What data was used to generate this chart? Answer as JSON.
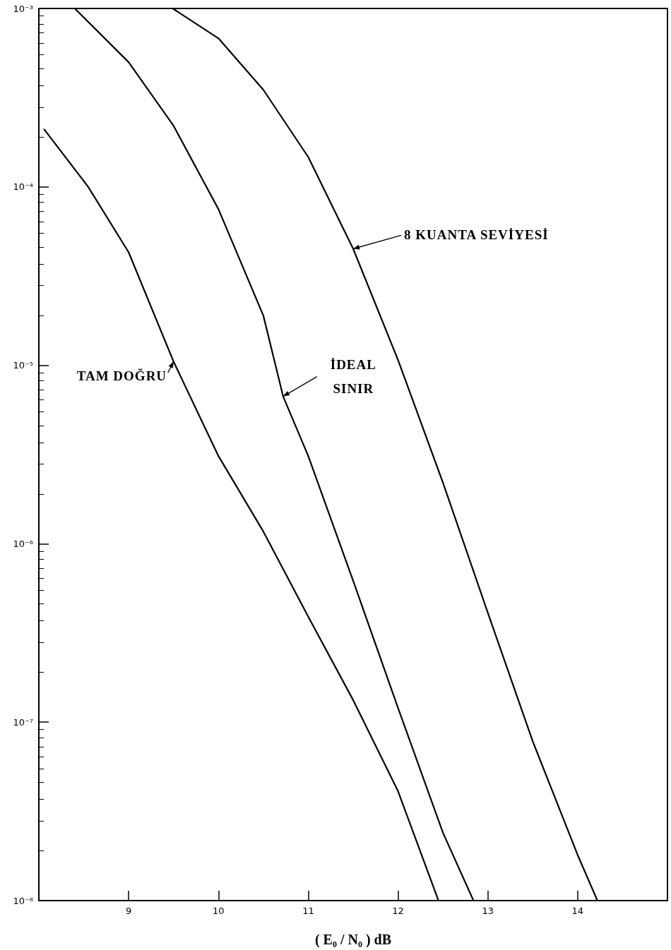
{
  "chart_data": {
    "type": "line",
    "xlabel": "( E₀ / N₀ ) dB",
    "log": "y",
    "grid": false,
    "marker": "none",
    "line_style": "solid",
    "xlim": [
      8,
      15
    ],
    "xticks": [
      9,
      10,
      11,
      12,
      13,
      14
    ],
    "ylim": [
      1e-08,
      0.001
    ],
    "yticks": [
      {
        "value": 1e-08,
        "label": "10⁻⁸"
      },
      {
        "value": 1e-07,
        "label": "10⁻⁷"
      },
      {
        "value": 1e-06,
        "label": "10⁻⁶"
      },
      {
        "value": 1e-05,
        "label": "10⁻⁵"
      },
      {
        "value": 0.0001,
        "label": "10⁻⁴"
      },
      {
        "value": 0.001,
        "label": "10⁻³"
      }
    ],
    "series": [
      {
        "color": "#000000",
        "x": [
          8.06,
          8.55,
          9.0,
          9.5,
          10.0,
          10.5,
          11.0,
          11.5,
          12.0,
          12.45
        ],
        "values": [
          0.00021,
          0.0001,
          4.3e-05,
          1.05e-05,
          3.1e-06,
          1.17e-06,
          3.9e-07,
          1.33e-07,
          4.1e-08,
          1e-08
        ]
      },
      {
        "color": "#000000",
        "x": [
          8.4,
          9.0,
          9.5,
          10.0,
          10.5,
          10.72,
          11.0,
          11.5,
          12.0,
          12.5,
          12.84
        ],
        "values": [
          0.001,
          0.0005,
          0.00022,
          7.5e-05,
          1.9e-05,
          6.7e-06,
          3.1e-06,
          6.2e-07,
          1.2e-07,
          2.4e-08,
          1e-08
        ]
      },
      {
        "color": "#000000",
        "x": [
          9.49,
          10.0,
          10.5,
          11.0,
          11.5,
          12.0,
          12.5,
          13.0,
          13.5,
          14.0,
          14.22
        ],
        "values": [
          0.001,
          0.00068,
          0.00035,
          0.000147,
          4.5e-05,
          1.07e-05,
          2.2e-06,
          4.1e-07,
          7.8e-08,
          1.8e-08,
          1e-08
        ]
      }
    ],
    "annotations": [
      {
        "text": "8 KUANTA SEVİYESİ",
        "x": 11.5,
        "y": 4.5e-05
      },
      {
        "text": "İDEAL SINIR",
        "x": 10.72,
        "y": 6.7e-06
      },
      {
        "text": "TAM DOĞRU",
        "x": 9.5,
        "y": 1.05e-05
      }
    ]
  }
}
